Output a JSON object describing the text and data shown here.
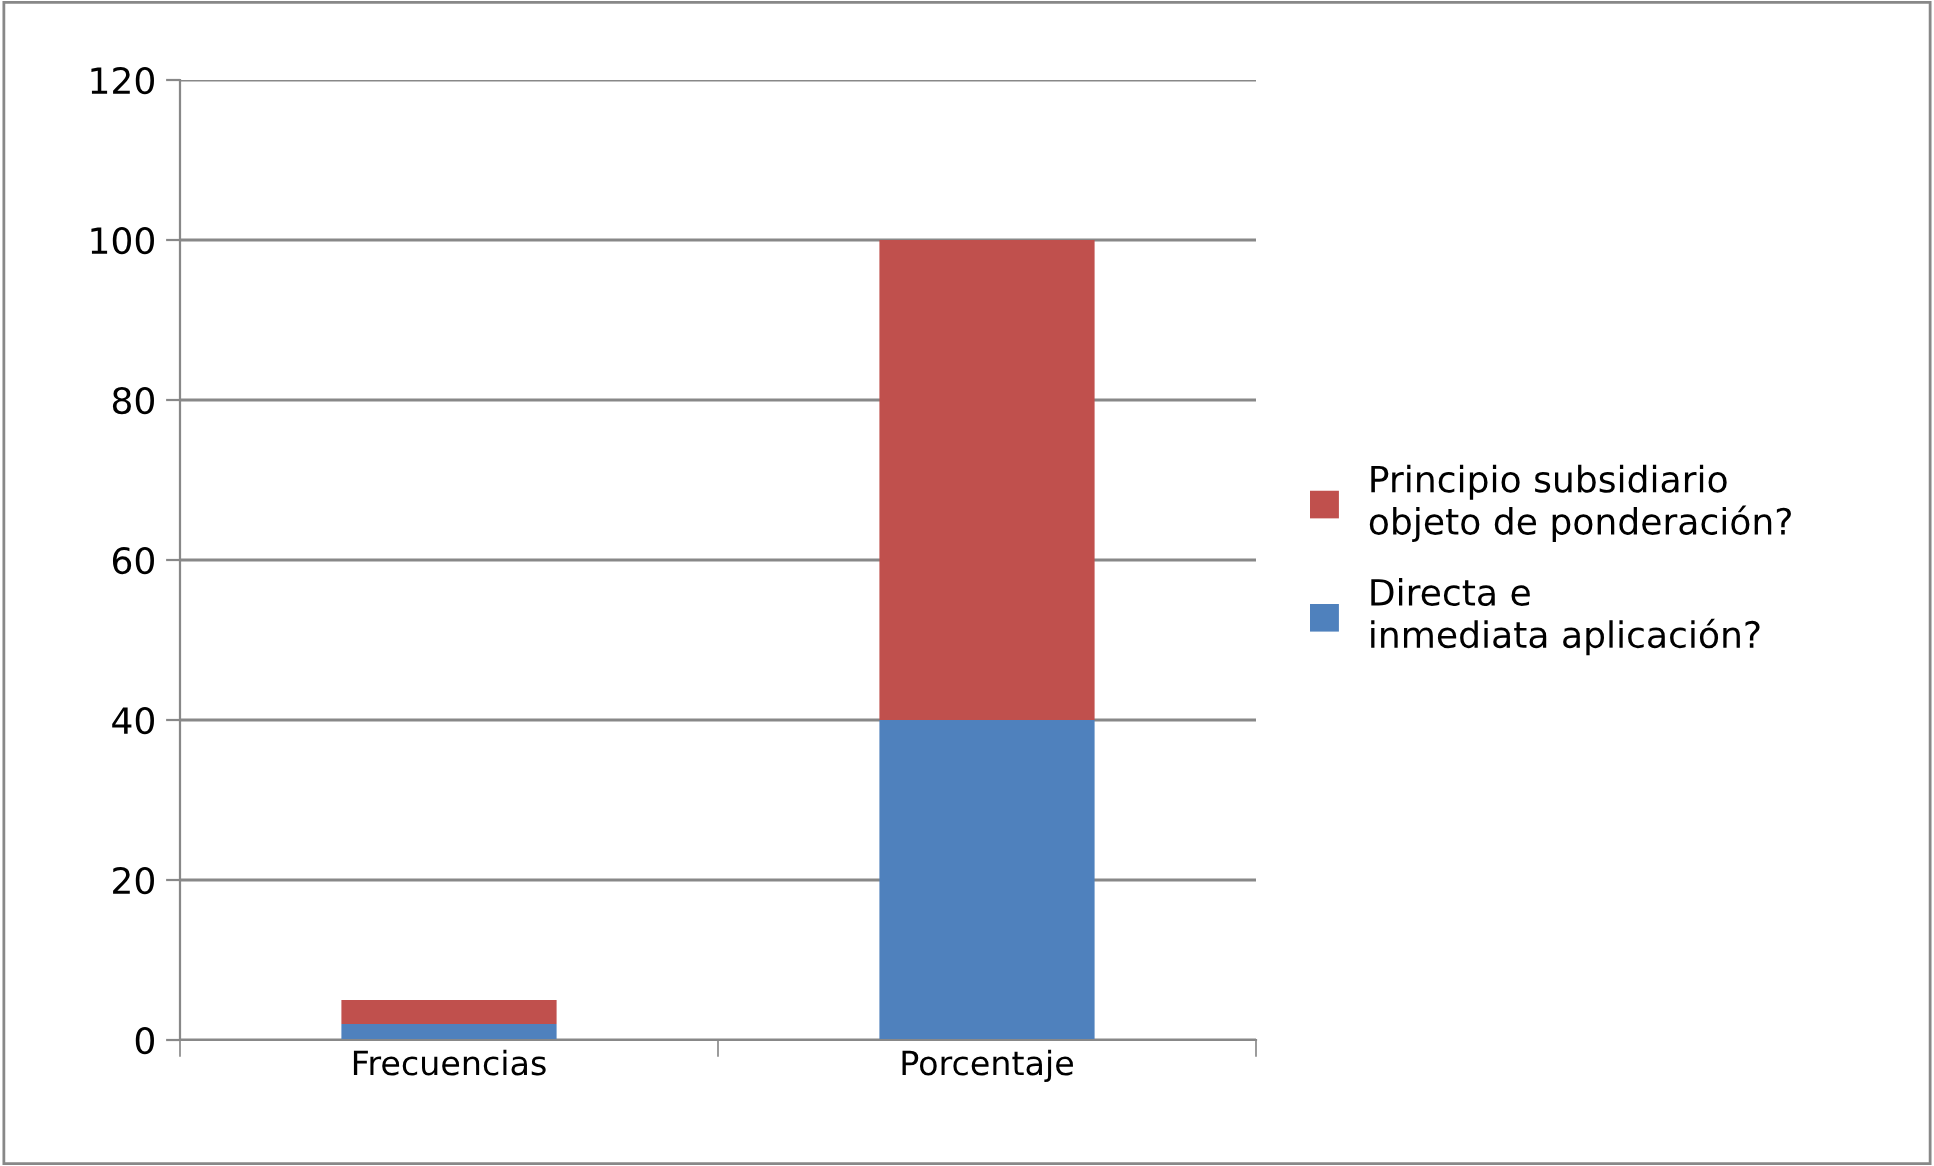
{
  "chart_data": {
    "type": "bar",
    "stacked": true,
    "categories": [
      "Frecuencias",
      "Porcentaje"
    ],
    "series": [
      {
        "name": "Directa e inmediata aplicación?",
        "color": "#4f81bd",
        "values": [
          2,
          40
        ]
      },
      {
        "name": "Principio subsidiario objeto de ponderación?",
        "color": "#c0504d",
        "values": [
          3,
          60
        ]
      }
    ],
    "ylim": [
      0,
      120
    ],
    "yticks": [
      0,
      20,
      40,
      60,
      80,
      100,
      120
    ],
    "grid": "y",
    "legend": "right"
  }
}
